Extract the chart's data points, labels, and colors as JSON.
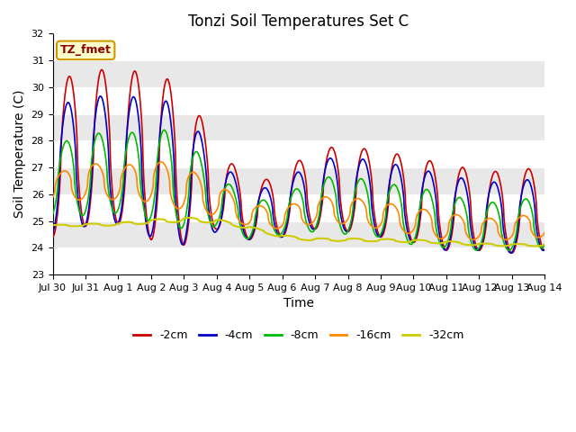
{
  "title": "Tonzi Soil Temperatures Set C",
  "xlabel": "Time",
  "ylabel": "Soil Temperature (C)",
  "annotation": "TZ_fmet",
  "ylim": [
    23.0,
    32.0
  ],
  "yticks": [
    23.0,
    24.0,
    25.0,
    26.0,
    27.0,
    28.0,
    29.0,
    30.0,
    31.0,
    32.0
  ],
  "xtick_labels": [
    "Jul 30",
    "Jul 31",
    "Aug 1",
    "Aug 2",
    "Aug 3",
    "Aug 4",
    "Aug 5",
    "Aug 6",
    "Aug 7",
    "Aug 8",
    "Aug 9",
    "Aug 10",
    "Aug 11",
    "Aug 12",
    "Aug 13",
    "Aug 14"
  ],
  "colors": {
    "-2cm": "#cc0000",
    "-4cm": "#0000cc",
    "-8cm": "#00bb00",
    "-16cm": "#ff8800",
    "-32cm": "#cccc00"
  },
  "bg_color": "#e8e8e8",
  "title_fontsize": 12,
  "axis_fontsize": 10,
  "tick_fontsize": 8
}
